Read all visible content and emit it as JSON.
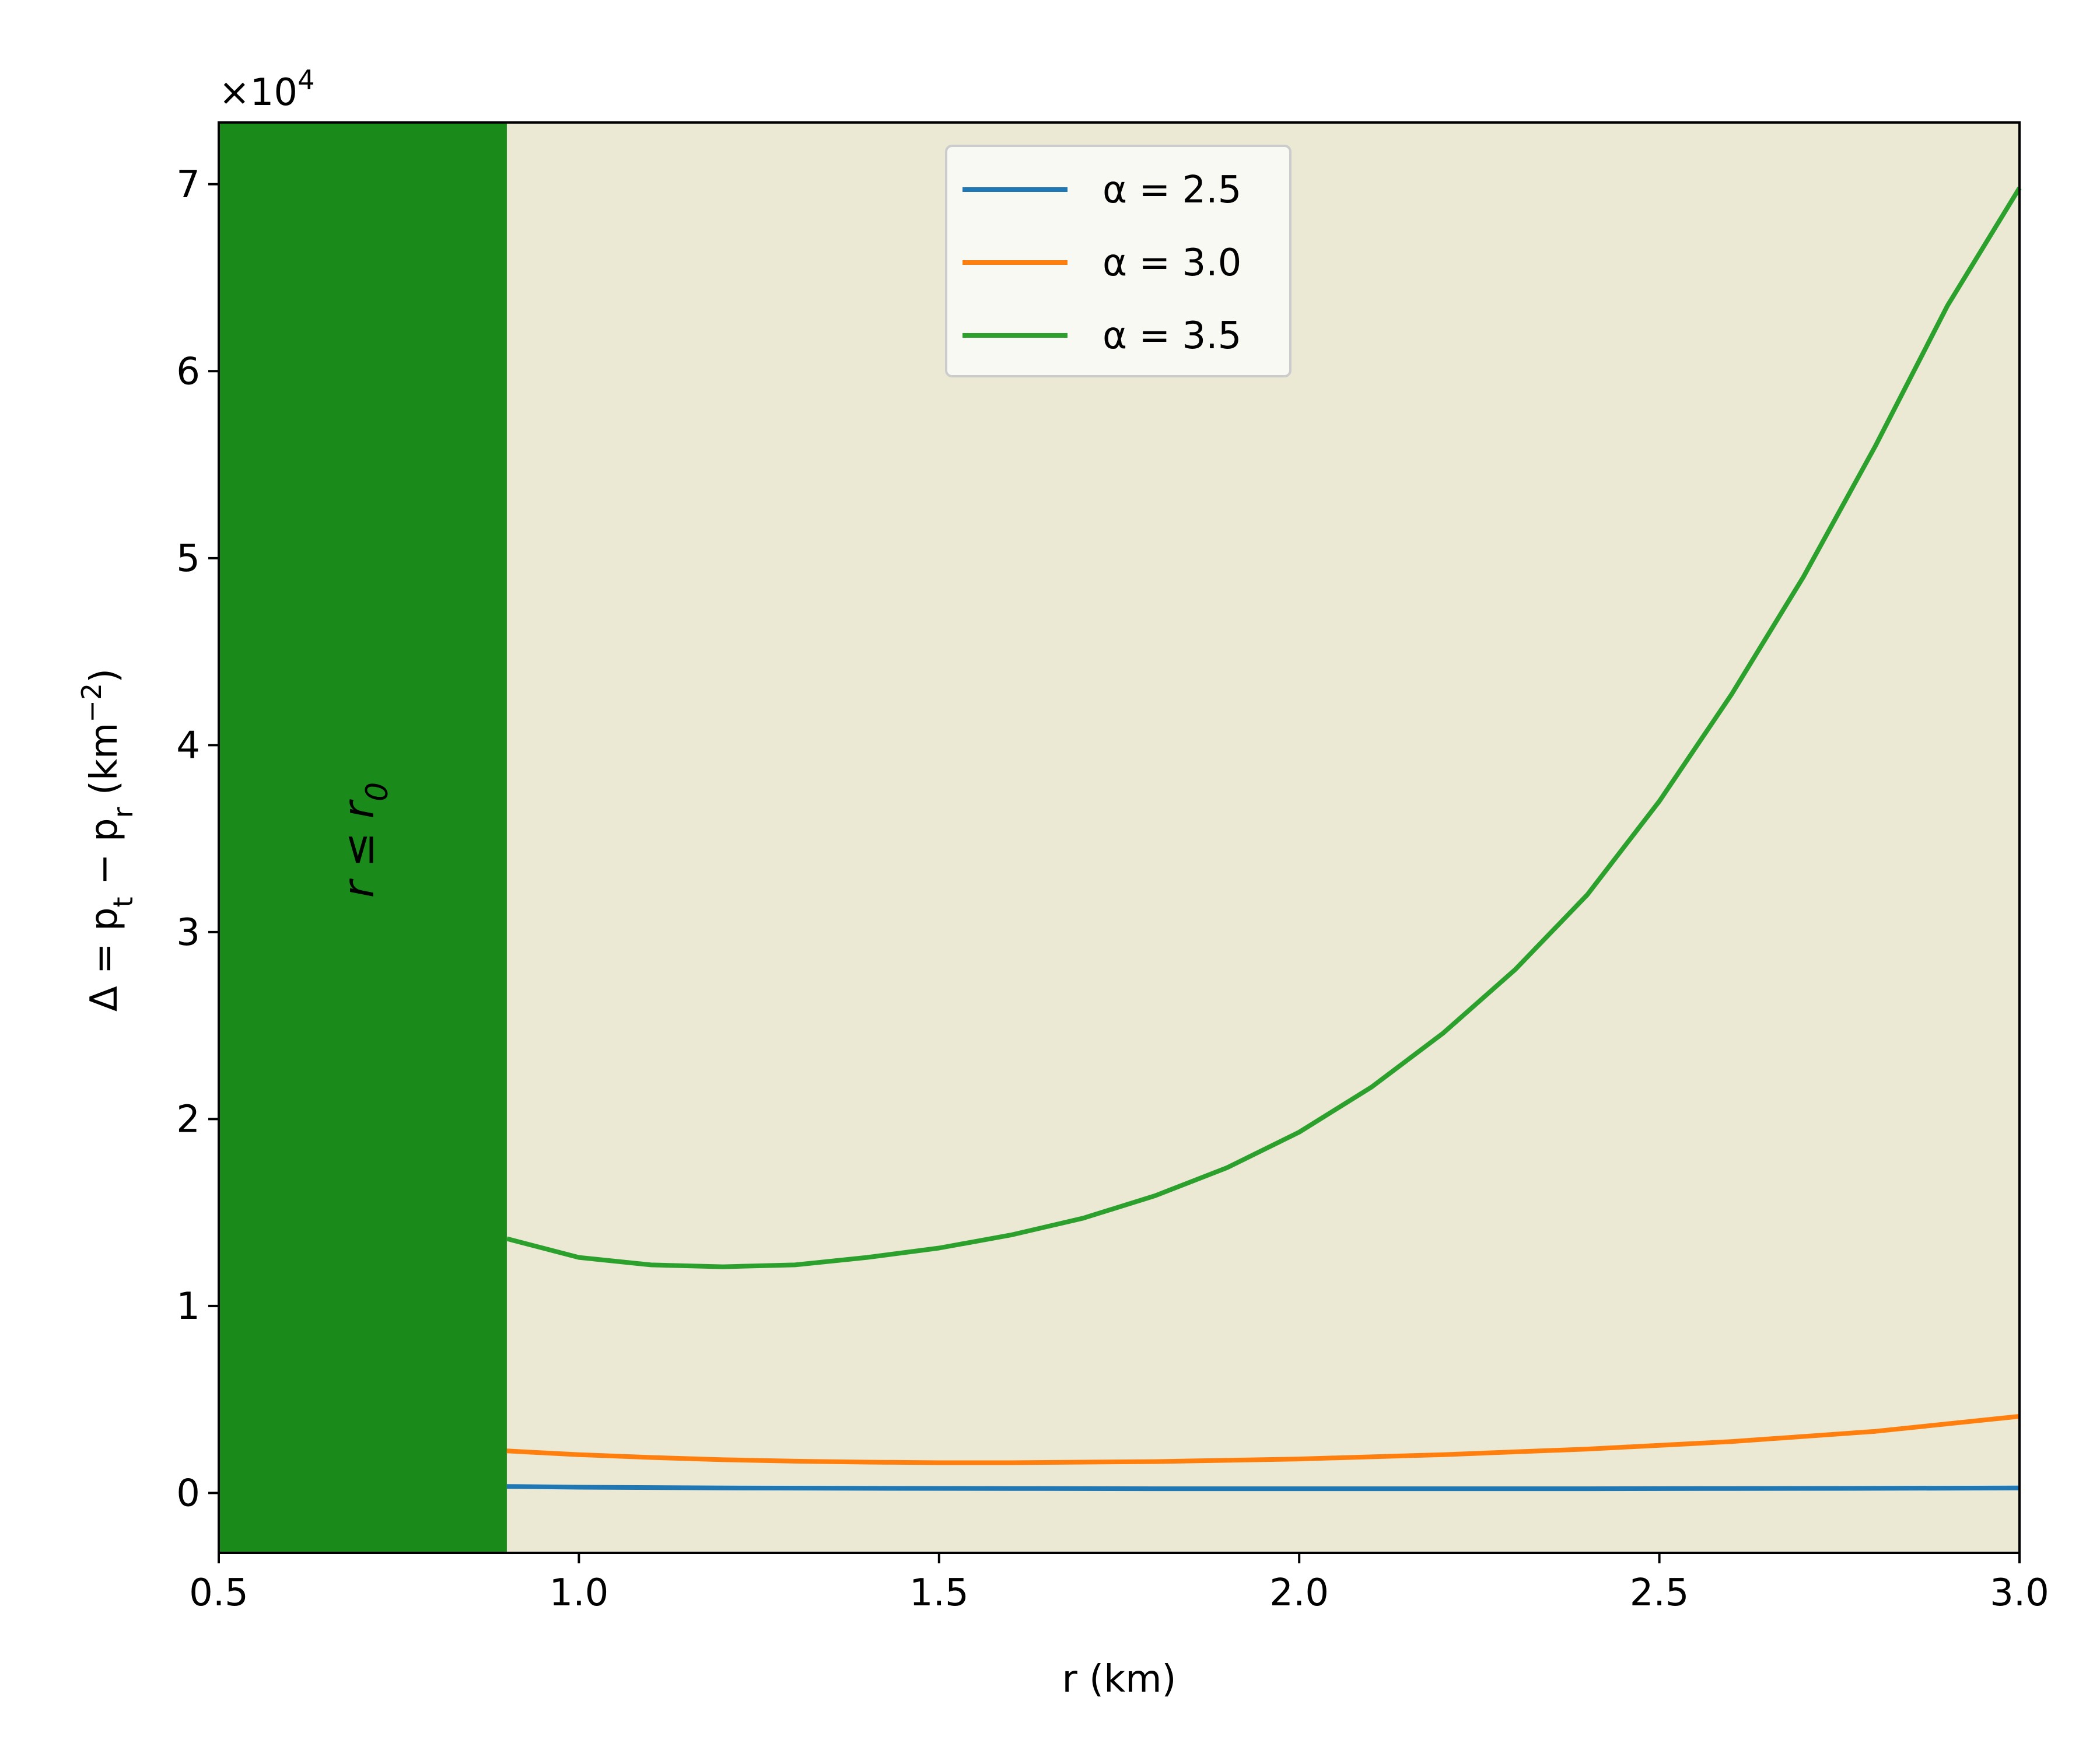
{
  "chart_data": {
    "type": "line",
    "xlabel": "r (km)",
    "ylabel": "Δ = p_t − p_r (km^−2)",
    "y_scale_label": "×10^4",
    "xlim": [
      0.5,
      3.0
    ],
    "ylim": [
      -0.32,
      7.33
    ],
    "y_multiplier": 10000,
    "grid": false,
    "legend_position": "top-center",
    "x_ticks": [
      "0.5",
      "1.0",
      "1.5",
      "2.0",
      "2.5",
      "3.0"
    ],
    "y_ticks": [
      "0",
      "1",
      "2",
      "3",
      "4",
      "5",
      "6",
      "7"
    ],
    "shaded_region": {
      "x_from": 0.5,
      "x_to": 0.9,
      "label": "r ≤ r0",
      "color": "#1a8a1a"
    },
    "plot_background": "#ebe8d3",
    "series": [
      {
        "name": "α = 2.5",
        "color": "#1f77b4",
        "x": [
          0.9,
          1.0,
          1.2,
          1.4,
          1.6,
          1.8,
          2.0,
          2.2,
          2.4,
          2.6,
          2.8,
          3.0
        ],
        "y": [
          0.035,
          0.031,
          0.027,
          0.025,
          0.024,
          0.023,
          0.023,
          0.023,
          0.023,
          0.024,
          0.025,
          0.027
        ]
      },
      {
        "name": "α = 3.0",
        "color": "#ff7f0e",
        "x": [
          0.9,
          1.0,
          1.1,
          1.2,
          1.3,
          1.4,
          1.5,
          1.6,
          1.8,
          2.0,
          2.2,
          2.4,
          2.6,
          2.8,
          3.0
        ],
        "y": [
          0.225,
          0.205,
          0.19,
          0.178,
          0.17,
          0.165,
          0.162,
          0.162,
          0.168,
          0.182,
          0.205,
          0.235,
          0.275,
          0.33,
          0.41
        ]
      },
      {
        "name": "α = 3.5",
        "color": "#2ca02c",
        "x": [
          0.9,
          1.0,
          1.1,
          1.2,
          1.3,
          1.4,
          1.5,
          1.6,
          1.7,
          1.8,
          1.9,
          2.0,
          2.1,
          2.2,
          2.3,
          2.4,
          2.5,
          2.6,
          2.7,
          2.8,
          2.9,
          3.0
        ],
        "y": [
          1.36,
          1.26,
          1.22,
          1.21,
          1.22,
          1.26,
          1.31,
          1.38,
          1.47,
          1.59,
          1.74,
          1.93,
          2.17,
          2.46,
          2.8,
          3.2,
          3.7,
          4.27,
          4.9,
          5.6,
          6.35,
          6.98
        ]
      }
    ],
    "legend": [
      {
        "label": "α = 2.5",
        "color": "#1f77b4"
      },
      {
        "label": "α = 3.0",
        "color": "#ff7f0e"
      },
      {
        "label": "α = 3.5",
        "color": "#2ca02c"
      }
    ]
  }
}
